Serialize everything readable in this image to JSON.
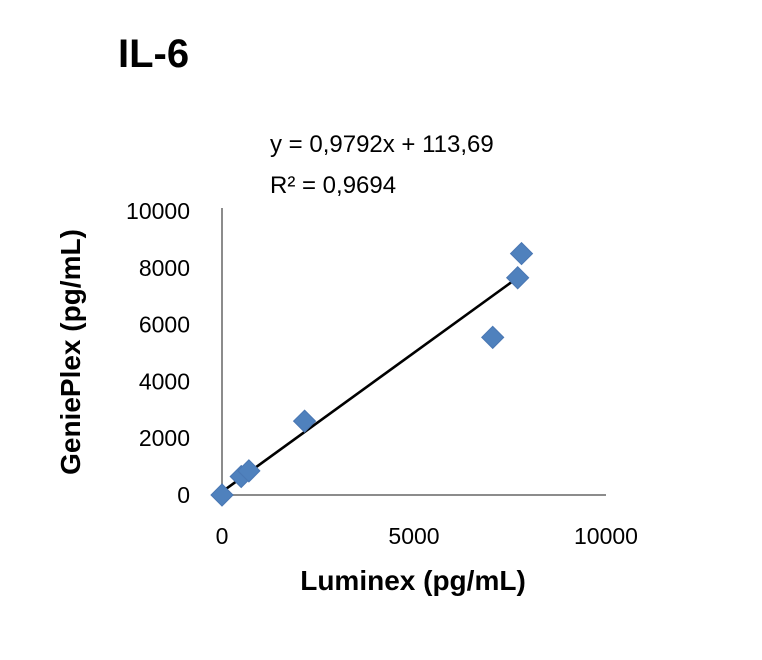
{
  "chart_data": {
    "type": "scatter",
    "title": "IL-6",
    "xlabel": "Luminex  (pg/mL)",
    "ylabel": "GeniePlex  (pg/mL)",
    "xlim": [
      0,
      10000
    ],
    "ylim": [
      0,
      10000
    ],
    "x_ticks": [
      "0",
      "5000",
      "10000"
    ],
    "y_ticks": [
      "0",
      "2000",
      "4000",
      "6000",
      "8000",
      "10000"
    ],
    "grid": false,
    "legend": "none",
    "point_color": "#4f81bd",
    "trendline": {
      "type": "linear",
      "slope": 0.9792,
      "intercept": 113.69,
      "x_range": [
        0,
        7800
      ],
      "color": "#000000",
      "equation_label": "y = 0,9792x + 113,69",
      "r2_label": "R² = 0,9694"
    },
    "points": [
      {
        "x": 0,
        "y": 0
      },
      {
        "x": 500,
        "y": 650
      },
      {
        "x": 700,
        "y": 850
      },
      {
        "x": 2150,
        "y": 2600
      },
      {
        "x": 7050,
        "y": 5550
      },
      {
        "x": 7700,
        "y": 7650
      },
      {
        "x": 7800,
        "y": 8500
      }
    ]
  }
}
